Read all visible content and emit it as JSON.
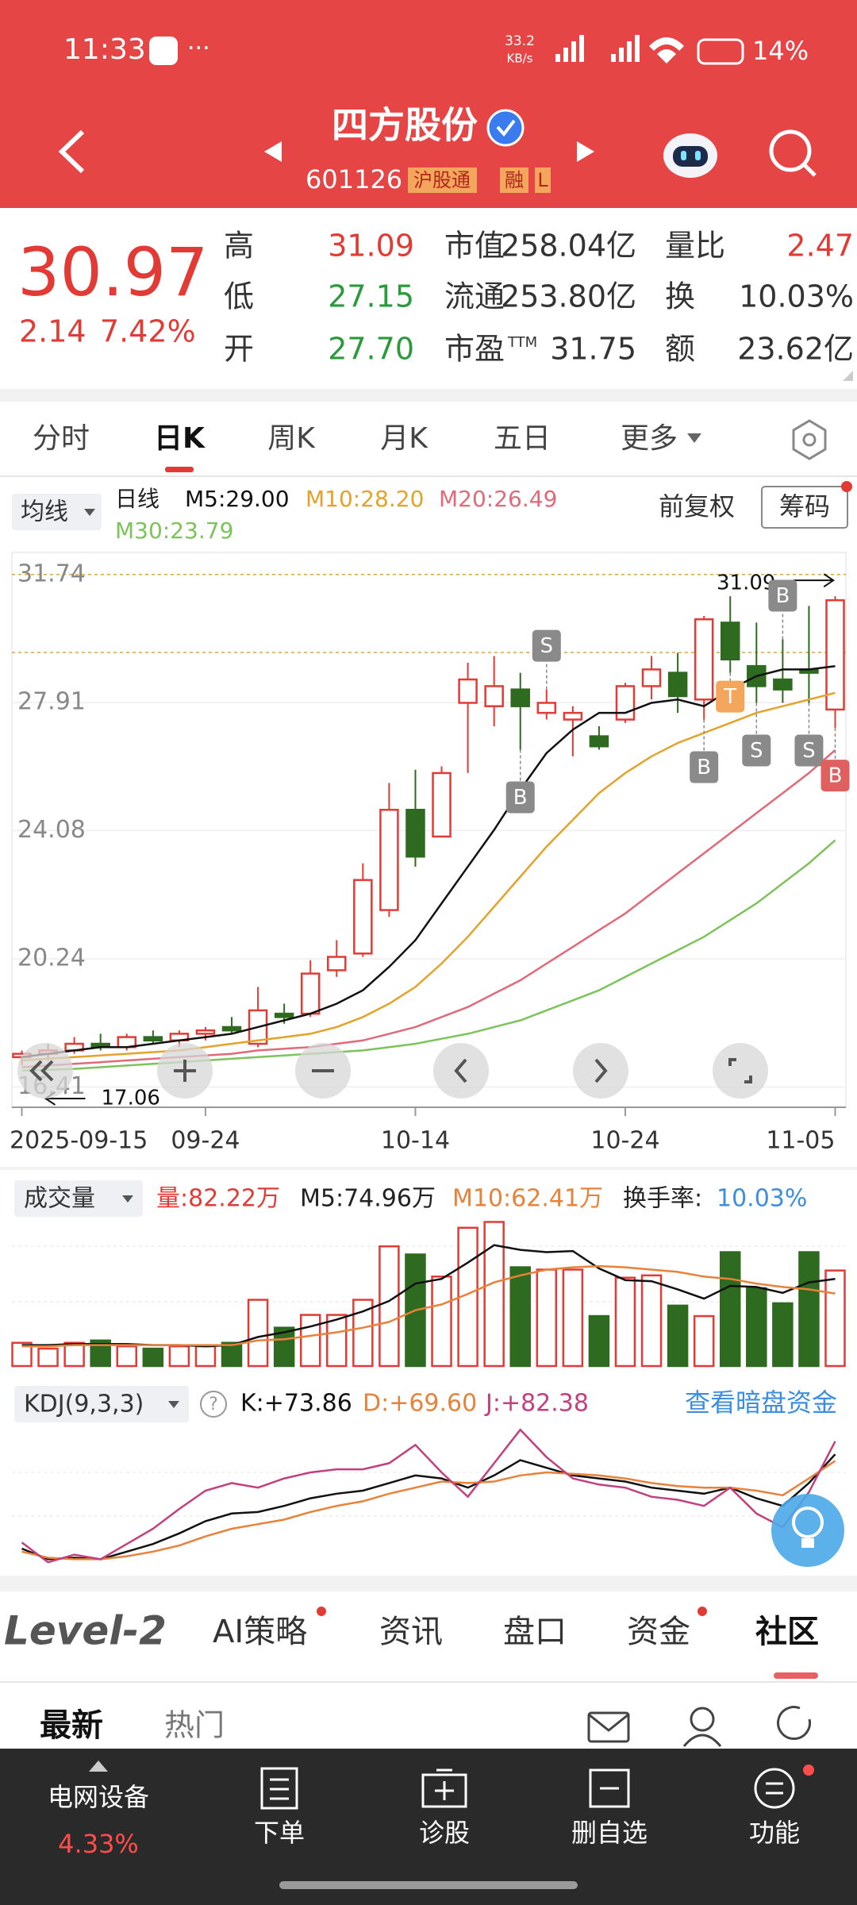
{
  "status_bar": {
    "time": "11:33",
    "net_speed": "33.2",
    "net_unit": "KB/s",
    "battery": "14%"
  },
  "header": {
    "title": "四方股份",
    "code": "601126",
    "tags": [
      "沪股通",
      "融",
      "L"
    ]
  },
  "quote": {
    "price": "30.97",
    "change": "2.14",
    "change_pct": "7.42%",
    "stats": [
      {
        "label": "高",
        "value": "31.09"
      },
      {
        "label": "低",
        "value": "27.15"
      },
      {
        "label": "开",
        "value": "27.70"
      },
      {
        "label": "市值",
        "value": "258.04亿"
      },
      {
        "label": "流通",
        "value": "253.80亿"
      },
      {
        "label": "市盈",
        "label_sup": "TTM",
        "value": "31.75"
      },
      {
        "label": "量比",
        "value": "2.47"
      },
      {
        "label": "换",
        "value": "10.03%"
      },
      {
        "label": "额",
        "value": "23.62亿"
      }
    ]
  },
  "period_tabs": [
    "分时",
    "日K",
    "周K",
    "月K",
    "五日",
    "更多"
  ],
  "kline": {
    "ma_button": "均线",
    "ma_title": "日线",
    "adjust": "前复权",
    "chips": "筹码",
    "ylim": [
      15.8,
      32.4
    ],
    "yticks": [
      31.74,
      27.91,
      24.08,
      20.24,
      16.41
    ],
    "categories": [
      "2025-09-15",
      null,
      null,
      null,
      null,
      null,
      null,
      "09-24",
      null,
      null,
      null,
      null,
      null,
      null,
      null,
      "10-14",
      null,
      null,
      null,
      null,
      null,
      null,
      null,
      "10-24",
      null,
      null,
      null,
      null,
      null,
      null,
      null,
      "11-05"
    ],
    "candles": {
      "open": [
        17.3,
        17.4,
        17.5,
        17.7,
        17.6,
        17.9,
        17.8,
        18.0,
        18.2,
        17.7,
        18.6,
        18.6,
        19.9,
        20.4,
        21.7,
        24.7,
        23.9,
        27.9,
        27.8,
        28.3,
        27.6,
        27.4,
        26.9,
        27.4,
        28.4,
        28.8,
        28.0,
        30.3,
        29.0,
        28.6,
        28.9,
        27.7
      ],
      "high": [
        17.5,
        17.7,
        17.9,
        18.0,
        18.0,
        18.1,
        18.1,
        18.2,
        18.5,
        19.4,
        18.9,
        20.2,
        20.8,
        23.1,
        25.5,
        25.9,
        26.0,
        29.1,
        29.3,
        28.8,
        28.3,
        27.8,
        27.2,
        28.5,
        29.3,
        29.4,
        30.5,
        31.09,
        30.3,
        29.8,
        30.8,
        31.09
      ],
      "low": [
        17.06,
        17.2,
        17.4,
        17.5,
        17.5,
        17.7,
        17.6,
        17.8,
        18.0,
        17.6,
        18.3,
        18.5,
        19.7,
        20.3,
        21.5,
        23.0,
        23.9,
        25.8,
        27.2,
        26.5,
        27.4,
        26.3,
        26.5,
        27.3,
        28.0,
        27.6,
        27.4,
        28.8,
        27.9,
        27.9,
        27.9,
        27.15
      ],
      "close": [
        17.4,
        17.5,
        17.7,
        17.6,
        17.9,
        17.8,
        18.0,
        18.1,
        18.1,
        18.7,
        18.5,
        19.8,
        20.3,
        22.6,
        24.7,
        23.3,
        25.8,
        28.6,
        28.4,
        27.8,
        27.9,
        27.6,
        26.6,
        28.4,
        28.9,
        28.1,
        30.4,
        29.2,
        28.4,
        28.3,
        28.8,
        30.97
      ]
    },
    "ma_series": [
      {
        "name": "M5:29.00",
        "color": "#111111",
        "values": [
          17.3,
          17.4,
          17.5,
          17.6,
          17.6,
          17.7,
          17.8,
          17.9,
          18.0,
          18.2,
          18.4,
          18.6,
          18.9,
          19.3,
          20.0,
          20.8,
          21.9,
          23.0,
          24.1,
          25.3,
          26.4,
          27.1,
          27.6,
          27.6,
          27.9,
          28.0,
          27.8,
          28.3,
          28.7,
          28.9,
          28.9,
          29.0
        ]
      },
      {
        "name": "M10:28.20",
        "color": "#e3a32a",
        "values": [
          17.2,
          17.25,
          17.3,
          17.35,
          17.4,
          17.45,
          17.5,
          17.6,
          17.7,
          17.8,
          17.9,
          18.0,
          18.2,
          18.5,
          18.9,
          19.4,
          20.1,
          20.9,
          21.8,
          22.7,
          23.6,
          24.4,
          25.2,
          25.8,
          26.3,
          26.7,
          27.0,
          27.3,
          27.6,
          27.8,
          28.0,
          28.2
        ]
      },
      {
        "name": "M20:26.49",
        "color": "#e06a7a",
        "values": [
          17.0,
          17.05,
          17.1,
          17.15,
          17.2,
          17.25,
          17.3,
          17.35,
          17.4,
          17.5,
          17.55,
          17.6,
          17.7,
          17.8,
          18.0,
          18.2,
          18.5,
          18.8,
          19.2,
          19.6,
          20.1,
          20.6,
          21.1,
          21.6,
          22.2,
          22.8,
          23.4,
          24.0,
          24.6,
          25.2,
          25.8,
          26.49
        ]
      },
      {
        "name": "M30:23.79",
        "color": "#7bc35a",
        "values": [
          16.9,
          16.92,
          16.95,
          17.0,
          17.05,
          17.1,
          17.15,
          17.2,
          17.25,
          17.3,
          17.35,
          17.4,
          17.45,
          17.5,
          17.6,
          17.7,
          17.85,
          18.0,
          18.2,
          18.4,
          18.7,
          19.0,
          19.3,
          19.7,
          20.1,
          20.5,
          20.9,
          21.4,
          21.9,
          22.5,
          23.1,
          23.79
        ]
      }
    ],
    "high_label": "31.09",
    "low_label": "17.06",
    "signals": [
      "B",
      "S",
      "B",
      "T",
      "S",
      "B",
      "S",
      "B"
    ]
  },
  "volume": {
    "button": "成交量",
    "legend": [
      {
        "text": "量:82.22万",
        "color": "#e23b36"
      },
      {
        "text": "M5:74.96万",
        "color": "#222222"
      },
      {
        "text": "M10:62.41万",
        "color": "#e8823a"
      },
      {
        "text": "换手率:",
        "color": "#222222"
      },
      {
        "text": "10.03%",
        "color": "#3b8ee0"
      }
    ],
    "ylim": [
      0,
      125
    ],
    "values": [
      20,
      15,
      20,
      22,
      17,
      15,
      17,
      17,
      20,
      57,
      33,
      44,
      44,
      57,
      103,
      96,
      77,
      119,
      124,
      85,
      83,
      83,
      43,
      76,
      78,
      52,
      43,
      98,
      67,
      54,
      98,
      82.22
    ],
    "ma5": [
      18,
      18,
      19,
      19,
      19,
      18,
      18,
      17,
      18,
      25,
      29,
      34,
      40,
      47,
      56,
      71,
      75,
      89,
      104,
      100,
      98,
      99,
      84,
      74,
      73,
      66,
      58,
      69,
      68,
      63,
      72,
      74.96
    ],
    "ma10": [
      17,
      17,
      18,
      18,
      18,
      18,
      18,
      18,
      18,
      22,
      23,
      26,
      29,
      33,
      38,
      48,
      53,
      62,
      72,
      78,
      83,
      85,
      86,
      85,
      83,
      81,
      77,
      75,
      71,
      68,
      66,
      62.41
    ],
    "ma_colors": [
      "#111111",
      "#e8823a"
    ]
  },
  "kdj": {
    "button": "KDJ(9,3,3)",
    "help": "?",
    "link": "查看暗盘资金",
    "ylim": [
      0,
      100
    ],
    "series": [
      {
        "name": "K:+73.86",
        "color": "#111111",
        "values": [
          12,
          5,
          6,
          5,
          10,
          15,
          22,
          30,
          35,
          36,
          40,
          45,
          48,
          50,
          55,
          60,
          58,
          52,
          60,
          70,
          65,
          60,
          58,
          56,
          52,
          50,
          48,
          52,
          45,
          40,
          55,
          73.86
        ]
      },
      {
        "name": "D:+69.60",
        "color": "#e8823a",
        "values": [
          10,
          6,
          5,
          5,
          7,
          10,
          14,
          20,
          25,
          28,
          31,
          36,
          40,
          43,
          48,
          52,
          56,
          55,
          56,
          60,
          62,
          61,
          60,
          58,
          55,
          53,
          52,
          52,
          50,
          47,
          58,
          69.6
        ]
      },
      {
        "name": "J:+82.38",
        "color": "#c2407e",
        "values": [
          16,
          3,
          8,
          5,
          15,
          25,
          38,
          50,
          55,
          52,
          58,
          62,
          64,
          64,
          68,
          80,
          62,
          46,
          68,
          90,
          72,
          58,
          54,
          52,
          46,
          44,
          40,
          52,
          35,
          26,
          49,
          82.38
        ]
      }
    ]
  },
  "bottom_tabs": [
    "Level-2",
    "AI策略",
    "资讯",
    "盘口",
    "资金",
    "社区"
  ],
  "sub_tabs": [
    "最新",
    "热门"
  ],
  "nav": {
    "sector": "电网设备",
    "sector_pct": "4.33%",
    "items": [
      "下单",
      "诊股",
      "删自选",
      "功能"
    ]
  }
}
